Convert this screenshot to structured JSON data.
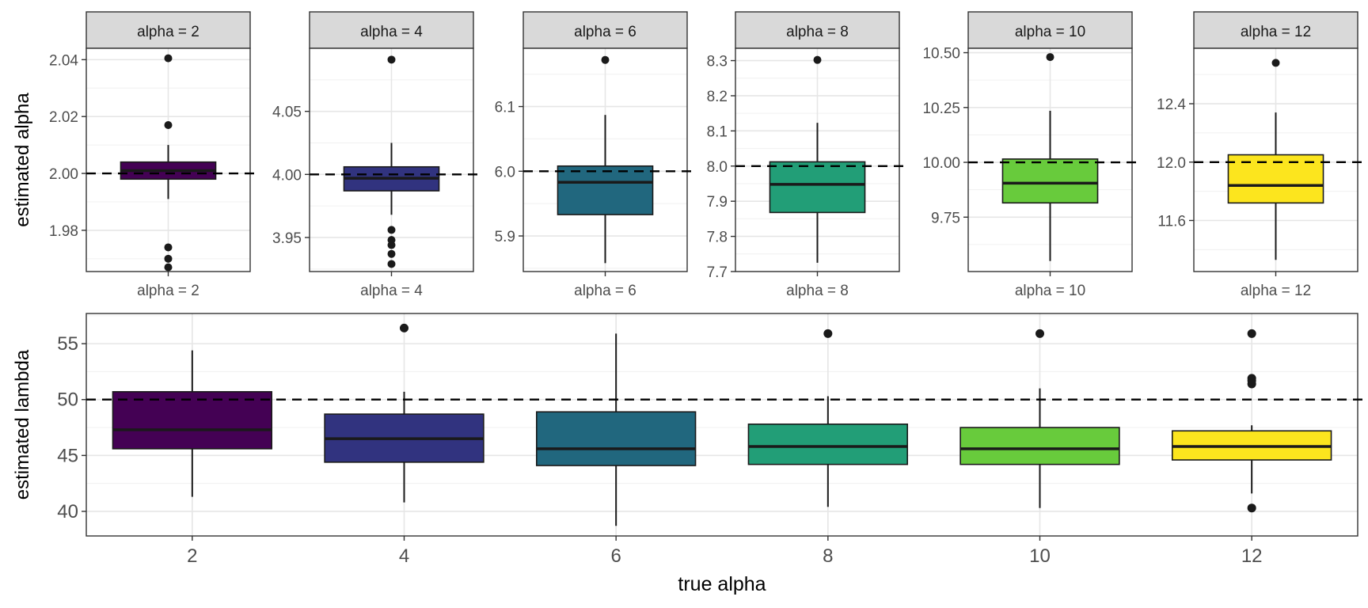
{
  "figure": {
    "top_ylabel": "estimated alpha",
    "bottom_ylabel": "estimated lambda",
    "bottom_xlabel": "true alpha",
    "reference_line_style": "dashed black"
  },
  "chart_data": [
    {
      "type": "boxplot",
      "panel": "top",
      "facet": "alpha = 2",
      "category": "alpha = 2",
      "ylim": [
        1.9655,
        2.044
      ],
      "yticks": [
        1.98,
        2.0,
        2.02,
        2.04
      ],
      "ytick_labels": [
        "1.98",
        "2.00",
        "2.02",
        "2.04"
      ],
      "reference_y": 2.0,
      "fill": "#440154",
      "box": {
        "whisker_low": 1.991,
        "q1": 1.998,
        "median": 2.001,
        "q3": 2.004,
        "whisker_high": 2.01
      },
      "outliers": [
        2.0405,
        2.017,
        1.974,
        1.97,
        1.967
      ]
    },
    {
      "type": "boxplot",
      "panel": "top",
      "facet": "alpha = 4",
      "category": "alpha = 4",
      "ylim": [
        3.923,
        4.1
      ],
      "yticks": [
        3.95,
        4.0,
        4.05
      ],
      "ytick_labels": [
        "3.95",
        "4.00",
        "4.05"
      ],
      "reference_y": 4.0,
      "fill": "#31337F",
      "box": {
        "whisker_low": 3.968,
        "q1": 3.987,
        "median": 3.997,
        "q3": 4.006,
        "whisker_high": 4.025
      },
      "outliers": [
        4.091,
        3.956,
        3.948,
        3.944,
        3.937,
        3.929
      ]
    },
    {
      "type": "boxplot",
      "panel": "top",
      "facet": "alpha = 6",
      "category": "alpha = 6",
      "ylim": [
        5.845,
        6.19
      ],
      "yticks": [
        5.9,
        6.0,
        6.1
      ],
      "ytick_labels": [
        "5.9",
        "6.0",
        "6.1"
      ],
      "reference_y": 6.0,
      "fill": "#21677E",
      "box": {
        "whisker_low": 5.858,
        "q1": 5.933,
        "median": 5.983,
        "q3": 6.008,
        "whisker_high": 6.087
      },
      "outliers": [
        6.172
      ]
    },
    {
      "type": "boxplot",
      "panel": "top",
      "facet": "alpha = 8",
      "category": "alpha = 8",
      "ylim": [
        7.7,
        8.335
      ],
      "yticks": [
        7.7,
        7.8,
        7.9,
        8.0,
        8.1,
        8.2,
        8.3
      ],
      "ytick_labels": [
        "7.7",
        "7.8",
        "7.9",
        "8.0",
        "8.1",
        "8.2",
        "8.3"
      ],
      "reference_y": 8.0,
      "fill": "#229E77",
      "box": {
        "whisker_low": 7.725,
        "q1": 7.868,
        "median": 7.948,
        "q3": 8.012,
        "whisker_high": 8.123
      },
      "outliers": [
        8.302
      ]
    },
    {
      "type": "boxplot",
      "panel": "top",
      "facet": "alpha = 10",
      "category": "alpha = 10",
      "ylim": [
        9.502,
        10.52
      ],
      "yticks": [
        9.75,
        10.0,
        10.25,
        10.5
      ],
      "ytick_labels": [
        "9.75",
        "10.00",
        "10.25",
        "10.50"
      ],
      "reference_y": 10.0,
      "fill": "#68CB3C",
      "box": {
        "whisker_low": 9.55,
        "q1": 9.815,
        "median": 9.905,
        "q3": 10.015,
        "whisker_high": 10.235
      },
      "outliers": [
        10.48
      ]
    },
    {
      "type": "boxplot",
      "panel": "top",
      "facet": "alpha = 12",
      "category": "alpha = 12",
      "ylim": [
        11.25,
        12.78
      ],
      "yticks": [
        11.6,
        12.0,
        12.4
      ],
      "ytick_labels": [
        "11.6",
        "12.0",
        "12.4"
      ],
      "reference_y": 12.0,
      "fill": "#FCE51E",
      "box": {
        "whisker_low": 11.33,
        "q1": 11.72,
        "median": 11.84,
        "q3": 12.05,
        "whisker_high": 12.34
      },
      "outliers": [
        12.68
      ]
    },
    {
      "type": "boxplot",
      "panel": "bottom",
      "xlabel": "true alpha",
      "ylabel": "estimated lambda",
      "ylim": [
        37.8,
        57.7
      ],
      "yticks": [
        40,
        45,
        50,
        55
      ],
      "ytick_labels": [
        "40",
        "45",
        "50",
        "55"
      ],
      "reference_y": 50,
      "categories": [
        "2",
        "4",
        "6",
        "8",
        "10",
        "12"
      ],
      "fills": [
        "#440154",
        "#31337F",
        "#21677E",
        "#229E77",
        "#68CB3C",
        "#FCE51E"
      ],
      "boxes": [
        {
          "whisker_low": 41.3,
          "q1": 45.6,
          "median": 47.3,
          "q3": 50.7,
          "whisker_high": 54.4
        },
        {
          "whisker_low": 40.8,
          "q1": 44.4,
          "median": 46.5,
          "q3": 48.7,
          "whisker_high": 50.7
        },
        {
          "whisker_low": 38.7,
          "q1": 44.1,
          "median": 45.6,
          "q3": 48.9,
          "whisker_high": 55.9
        },
        {
          "whisker_low": 40.4,
          "q1": 44.2,
          "median": 45.8,
          "q3": 47.8,
          "whisker_high": 50.3
        },
        {
          "whisker_low": 40.3,
          "q1": 44.2,
          "median": 45.6,
          "q3": 47.5,
          "whisker_high": 51.0
        },
        {
          "whisker_low": 41.6,
          "q1": 44.6,
          "median": 45.8,
          "q3": 47.2,
          "whisker_high": 47.7
        }
      ],
      "outliers": [
        [],
        [
          56.4
        ],
        [],
        [
          55.9
        ],
        [
          55.9
        ],
        [
          55.9,
          51.9,
          51.7,
          51.4,
          40.3
        ]
      ]
    }
  ]
}
